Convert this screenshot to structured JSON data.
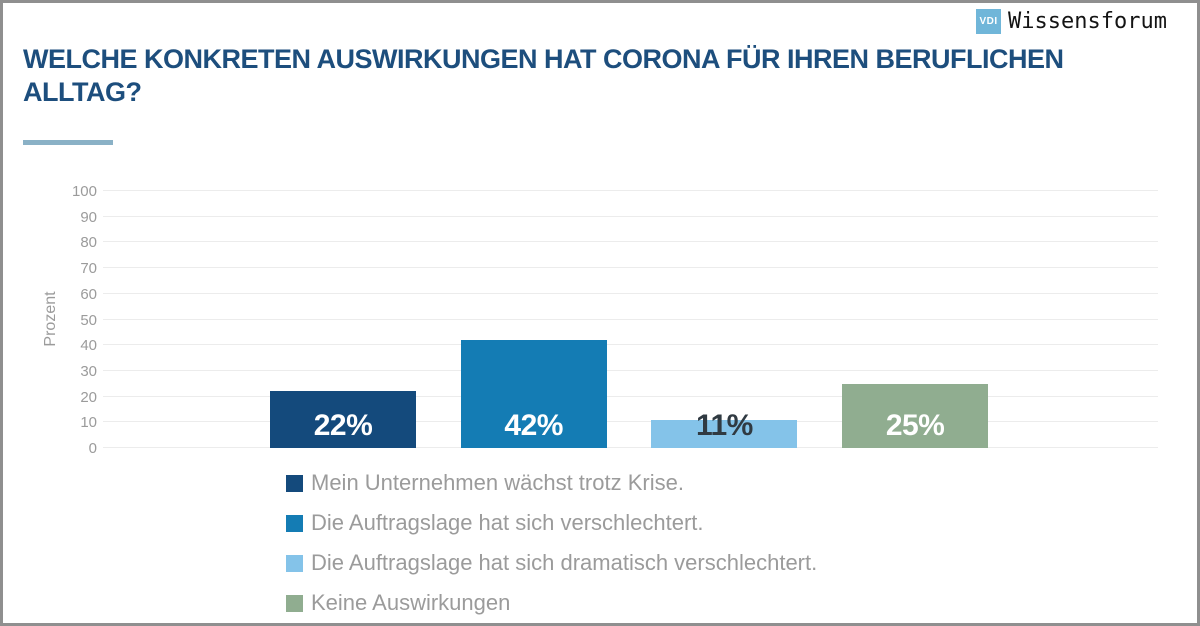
{
  "header": {
    "title": "WELCHE KONKRETEN AUSWIRKUNGEN HAT CORONA FÜR IHREN BERUFLICHEN ALLTAG?",
    "title_color": "#1d4e7d",
    "rule_color": "#8ab1c6",
    "logo": {
      "badge_text": "VDI",
      "badge_color": "#70b6d9",
      "brand_name": "Wissensforum"
    }
  },
  "chart_data": {
    "type": "bar",
    "title": "",
    "xlabel": "",
    "ylabel": "Prozent",
    "ylim": [
      0,
      100
    ],
    "yticks": [
      0,
      10,
      20,
      30,
      40,
      50,
      60,
      70,
      80,
      90,
      100
    ],
    "grid": true,
    "gridline_color": "#ececec",
    "axis_text_color": "#9b9b9b",
    "legend_position": "bottom",
    "legend_text_color": "#9b9b9b",
    "categories": [
      "Mein Unternehmen wächst trotz Krise.",
      "Die Auftragslage hat sich verschlechtert.",
      "Die Auftragslage hat sich dramatisch verschlechtert.",
      "Keine Auswirkungen"
    ],
    "values": [
      22,
      42,
      11,
      25
    ],
    "bars": [
      {
        "category": "Mein Unternehmen wächst trotz Krise.",
        "value": 22,
        "value_label": "22%",
        "color": "#144a7c",
        "value_label_color": "#ffffff"
      },
      {
        "category": "Die Auftragslage hat sich verschlechtert.",
        "value": 42,
        "value_label": "42%",
        "color": "#147cb4",
        "value_label_color": "#ffffff"
      },
      {
        "category": "Die Auftragslage hat sich dramatisch verschlechtert.",
        "value": 11,
        "value_label": "11%",
        "color": "#84c3e9",
        "value_label_color": "#303a42"
      },
      {
        "category": "Keine Auswirkungen",
        "value": 25,
        "value_label": "25%",
        "color": "#90ad90",
        "value_label_color": "#ffffff"
      }
    ]
  }
}
